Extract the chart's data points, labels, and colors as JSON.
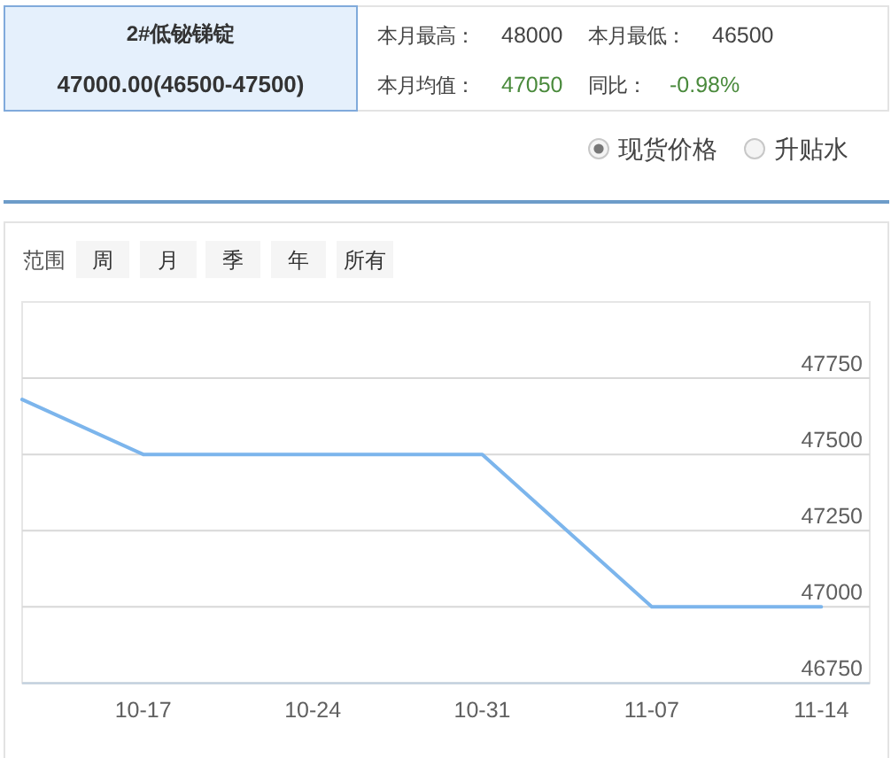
{
  "chart_data": {
    "type": "line",
    "title": "2#低铋锑锭",
    "subtitle": "47000.00(46500-47500)",
    "annotations": [
      "本月最高：",
      "48000",
      "本月最低：",
      "46500",
      "本月均值：",
      "47050",
      "同比：",
      "-0.98%",
      "现货价格",
      "升贴水",
      "范围",
      "周",
      "月",
      "季",
      "年",
      "所有"
    ],
    "series": [
      {
        "color": "#7cb5ec",
        "x": [
          "--10-12",
          "--10-17",
          "--10-31",
          "--11-07",
          "--11-14"
        ],
        "values": [
          47680,
          47500,
          47500,
          47000,
          47000
        ]
      }
    ],
    "xlim": [
      "--10-12",
      "--11-16"
    ],
    "xticks": [
      {
        "value": "--10-17",
        "label": "10-17"
      },
      {
        "value": "--10-24",
        "label": "10-24"
      },
      {
        "value": "--10-31",
        "label": "10-31"
      },
      {
        "value": "--11-07",
        "label": "11-07"
      },
      {
        "value": "--11-14",
        "label": "11-14"
      }
    ],
    "ylim": [
      46750,
      48000
    ],
    "yticks": [
      46750,
      47000,
      47250,
      47500,
      47750
    ],
    "grid": "y"
  }
}
